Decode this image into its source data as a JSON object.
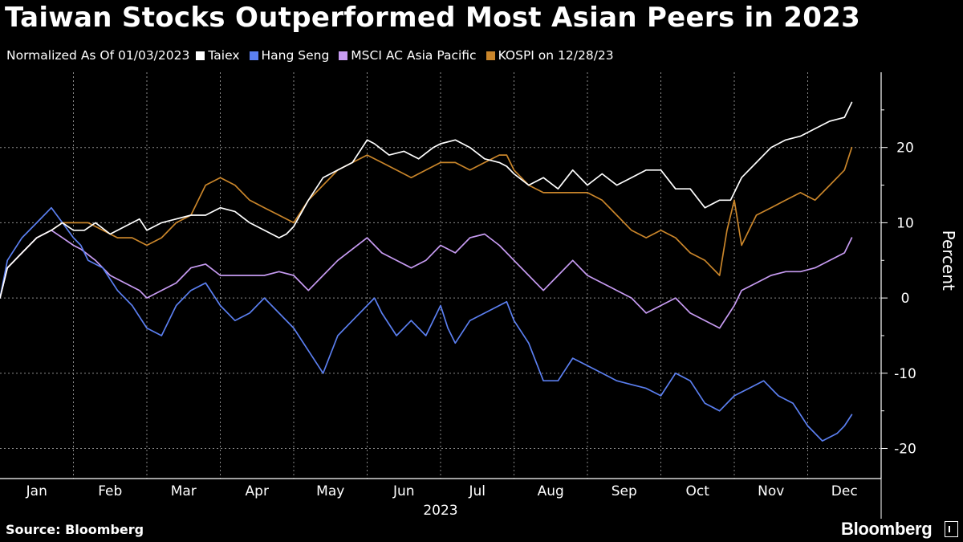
{
  "title": "Taiwan Stocks Outperformed Most Asian Peers in 2023",
  "legend_lead": "Normalized As Of 01/03/2023",
  "source": "Source: Bloomberg",
  "brand": "Bloomberg",
  "colors": {
    "background": "#000000",
    "grid": "#8a8a8a",
    "taiex": "#ffffff",
    "hang_seng": "#5b7ff0",
    "msci": "#c79bf2",
    "kospi": "#c9852a"
  },
  "chart_data": {
    "type": "line",
    "title": "Taiwan Stocks Outperformed Most Asian Peers in 2023",
    "ylabel": "Percent",
    "xlabel": "2023",
    "ylim": [
      -24,
      30
    ],
    "yticks": [
      20,
      10,
      0,
      -10,
      -20
    ],
    "x_axis": "months of 2023 (fractional months from Jan 1)",
    "xticks": [
      "Jan",
      "Feb",
      "Mar",
      "Apr",
      "May",
      "Jun",
      "Jul",
      "Aug",
      "Sep",
      "Oct",
      "Nov",
      "Dec"
    ],
    "year_label": "2023",
    "grid": true,
    "legend_position": "top-left",
    "series": [
      {
        "name": "Taiex",
        "color": "#ffffff",
        "x": [
          0.0,
          0.1,
          0.3,
          0.5,
          0.7,
          0.85,
          1.0,
          1.15,
          1.3,
          1.5,
          1.7,
          1.9,
          2.0,
          2.2,
          2.4,
          2.6,
          2.8,
          3.0,
          3.2,
          3.4,
          3.6,
          3.8,
          3.9,
          4.0,
          4.2,
          4.4,
          4.6,
          4.8,
          5.0,
          5.1,
          5.3,
          5.5,
          5.7,
          5.9,
          6.0,
          6.2,
          6.4,
          6.6,
          6.8,
          6.9,
          7.0,
          7.2,
          7.4,
          7.6,
          7.8,
          8.0,
          8.2,
          8.4,
          8.6,
          8.8,
          9.0,
          9.2,
          9.4,
          9.6,
          9.8,
          9.95,
          10.1,
          10.3,
          10.5,
          10.7,
          10.9,
          11.1,
          11.3,
          11.5,
          11.6
        ],
        "y": [
          0,
          4,
          6,
          8,
          9,
          10,
          9,
          9,
          10,
          8.5,
          9.5,
          10.5,
          9,
          10,
          10.5,
          11,
          11,
          12,
          11.5,
          10,
          9,
          8,
          8.5,
          9.5,
          13,
          16,
          17,
          18,
          21,
          20.5,
          19,
          19.5,
          18.5,
          20,
          20.5,
          21,
          20,
          18.5,
          18,
          17.5,
          16.5,
          15,
          16,
          14.5,
          17,
          15,
          16.5,
          15,
          16,
          17,
          17,
          14.5,
          14.5,
          12,
          13,
          13,
          16,
          18,
          20,
          21,
          21.5,
          22.5,
          23.5,
          24,
          26
        ]
      },
      {
        "name": "Hang Seng",
        "color": "#5b7ff0",
        "x": [
          0.0,
          0.1,
          0.3,
          0.5,
          0.7,
          0.85,
          1.0,
          1.1,
          1.2,
          1.4,
          1.6,
          1.8,
          2.0,
          2.2,
          2.4,
          2.6,
          2.8,
          3.0,
          3.2,
          3.4,
          3.6,
          3.8,
          4.0,
          4.2,
          4.4,
          4.6,
          4.8,
          5.0,
          5.1,
          5.2,
          5.4,
          5.6,
          5.8,
          6.0,
          6.1,
          6.2,
          6.4,
          6.6,
          6.8,
          6.9,
          7.0,
          7.2,
          7.4,
          7.6,
          7.8,
          8.0,
          8.2,
          8.4,
          8.6,
          8.8,
          9.0,
          9.2,
          9.4,
          9.6,
          9.8,
          10.0,
          10.2,
          10.4,
          10.6,
          10.8,
          11.0,
          11.2,
          11.4,
          11.5,
          11.6
        ],
        "y": [
          0,
          5,
          8,
          10,
          12,
          10,
          8,
          7,
          5,
          4,
          1,
          -1,
          -4,
          -5,
          -1,
          1,
          2,
          -1,
          -3,
          -2,
          0,
          -2,
          -4,
          -7,
          -10,
          -5,
          -3,
          -1,
          0,
          -2,
          -5,
          -3,
          -5,
          -1,
          -4,
          -6,
          -3,
          -2,
          -1,
          -0.5,
          -3,
          -6,
          -11,
          -11,
          -8,
          -9,
          -10,
          -11,
          -11.5,
          -12,
          -13,
          -10,
          -11,
          -14,
          -15,
          -13,
          -12,
          -11,
          -13,
          -14,
          -17,
          -19,
          -18,
          -17,
          -15.5
        ]
      },
      {
        "name": "MSCI AC Asia Pacific",
        "color": "#c79bf2",
        "x": [
          0.0,
          0.1,
          0.3,
          0.5,
          0.7,
          0.85,
          1.0,
          1.1,
          1.3,
          1.5,
          1.7,
          1.9,
          2.0,
          2.2,
          2.4,
          2.6,
          2.8,
          3.0,
          3.2,
          3.4,
          3.6,
          3.8,
          4.0,
          4.2,
          4.4,
          4.6,
          4.8,
          5.0,
          5.2,
          5.4,
          5.6,
          5.8,
          6.0,
          6.2,
          6.4,
          6.6,
          6.8,
          6.9,
          7.0,
          7.2,
          7.4,
          7.6,
          7.8,
          8.0,
          8.2,
          8.4,
          8.6,
          8.8,
          9.0,
          9.2,
          9.4,
          9.6,
          9.8,
          10.0,
          10.1,
          10.3,
          10.5,
          10.7,
          10.9,
          11.1,
          11.3,
          11.5,
          11.6
        ],
        "y": [
          0,
          4,
          6,
          8,
          9,
          8,
          7,
          6.5,
          5,
          3,
          2,
          1,
          0,
          1,
          2,
          4,
          4.5,
          3,
          3,
          3,
          3,
          3.5,
          3,
          1,
          3,
          5,
          6.5,
          8,
          6,
          5,
          4,
          5,
          7,
          6,
          8,
          8.5,
          7,
          6,
          5,
          3,
          1,
          3,
          5,
          3,
          2,
          1,
          0,
          -2,
          -1,
          0,
          -2,
          -3,
          -4,
          -1,
          1,
          2,
          3,
          3.5,
          3.5,
          4,
          5,
          6,
          8
        ]
      },
      {
        "name": "KOSPI on 12/28/23",
        "color": "#c9852a",
        "x": [
          0.0,
          0.1,
          0.3,
          0.5,
          0.7,
          0.85,
          1.0,
          1.2,
          1.4,
          1.6,
          1.8,
          2.0,
          2.2,
          2.4,
          2.6,
          2.8,
          3.0,
          3.2,
          3.4,
          3.6,
          3.8,
          4.0,
          4.2,
          4.4,
          4.6,
          4.8,
          5.0,
          5.2,
          5.4,
          5.6,
          5.8,
          6.0,
          6.2,
          6.4,
          6.6,
          6.8,
          6.9,
          7.0,
          7.2,
          7.4,
          7.6,
          7.8,
          8.0,
          8.2,
          8.4,
          8.6,
          8.8,
          9.0,
          9.2,
          9.4,
          9.6,
          9.8,
          9.9,
          10.0,
          10.1,
          10.3,
          10.5,
          10.7,
          10.9,
          11.1,
          11.3,
          11.5,
          11.6
        ],
        "y": [
          0,
          4,
          6,
          8,
          9,
          10,
          10,
          10,
          9,
          8,
          8,
          7,
          8,
          10,
          11,
          15,
          16,
          15,
          13,
          12,
          11,
          10,
          13,
          15,
          17,
          18,
          19,
          18,
          17,
          16,
          17,
          18,
          18,
          17,
          18,
          19,
          19,
          17,
          15,
          14,
          14,
          14,
          14,
          13,
          11,
          9,
          8,
          9,
          8,
          6,
          5,
          3,
          9,
          13,
          7,
          11,
          12,
          13,
          14,
          13,
          15,
          17,
          20
        ]
      }
    ]
  }
}
